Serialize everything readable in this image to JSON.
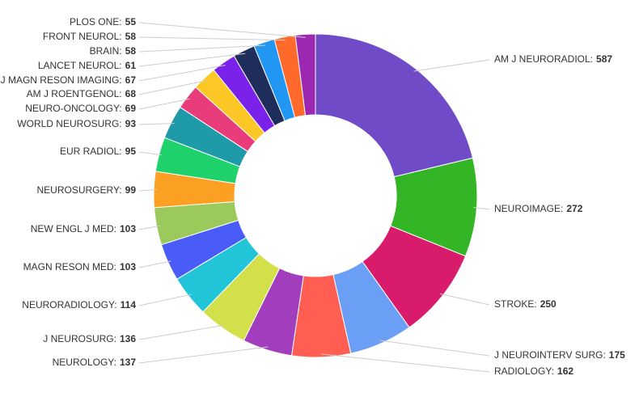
{
  "chart_data": {
    "type": "donut",
    "categories": [
      "AM J NEURORADIOL:",
      "NEUROIMAGE:",
      "STROKE:",
      "J NEUROINTERV SURG:",
      "RADIOLOGY:",
      "NEUROLOGY:",
      "J NEUROSURG:",
      "NEURORADIOLOGY:",
      "MAGN RESON MED:",
      "NEW ENGL J MED:",
      "NEUROSURGERY:",
      "EUR RADIOL:",
      "WORLD NEUROSURG:",
      "NEURO-ONCOLOGY:",
      "AM J ROENTGENOL:",
      "J MAGN RESON IMAGING:",
      "LANCET NEUROL:",
      "BRAIN:",
      "FRONT NEUROL:",
      "PLOS ONE:"
    ],
    "values": [
      587,
      272,
      250,
      175,
      162,
      137,
      136,
      114,
      103,
      103,
      99,
      95,
      93,
      69,
      68,
      67,
      61,
      58,
      58,
      55
    ],
    "colors": [
      "#6f4bc7",
      "#34b526",
      "#d81b6b",
      "#6a9ff5",
      "#ff5f52",
      "#a23dbd",
      "#d4e04a",
      "#22c4d8",
      "#4a5cf7",
      "#9bc95c",
      "#fca024",
      "#1fd16a",
      "#1f9aa8",
      "#e83c7b",
      "#fdc725",
      "#7b22ea",
      "#1f2d5a",
      "#2196f3",
      "#ff6a2a",
      "#9c27b0"
    ]
  }
}
